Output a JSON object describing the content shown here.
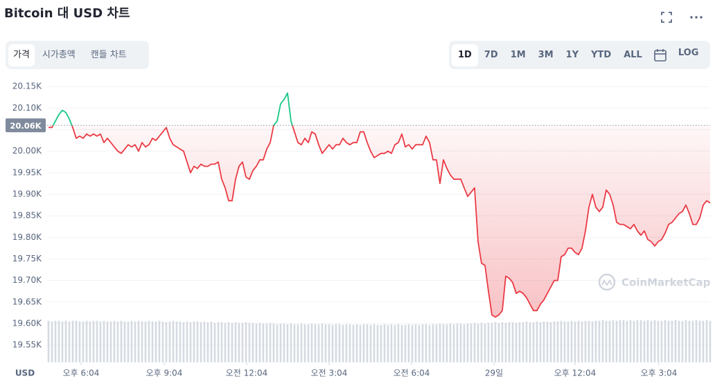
{
  "header": {
    "title": "Bitcoin 대 USD 차트"
  },
  "tabs": [
    "가격",
    "시가총액",
    "캔들 차트"
  ],
  "ranges": [
    "1D",
    "7D",
    "1M",
    "3M",
    "1Y",
    "YTD",
    "ALL"
  ],
  "log_button": "LOG",
  "chart_data": {
    "type": "line",
    "currency_label": "USD",
    "watermark": "CoinMarketCap",
    "up_color": "#16c784",
    "down_color": "#ea3943",
    "volume_color": "#d5dae2",
    "reference_line": {
      "value": 20060,
      "label": "20.06K"
    },
    "values": [
      20055,
      20055,
      20070,
      20085,
      20095,
      20090,
      20075,
      20055,
      20030,
      20035,
      20030,
      20040,
      20035,
      20040,
      20035,
      20040,
      20020,
      20030,
      20020,
      20010,
      20000,
      19995,
      20005,
      20015,
      20010,
      20015,
      20000,
      20020,
      20010,
      20015,
      20030,
      20025,
      20035,
      20045,
      20055,
      20030,
      20015,
      20010,
      20005,
      20000,
      19975,
      19950,
      19965,
      19960,
      19970,
      19965,
      19965,
      19970,
      19970,
      19975,
      19935,
      19915,
      19885,
      19885,
      19935,
      19965,
      19975,
      19940,
      19935,
      19955,
      19965,
      19980,
      19980,
      20005,
      20020,
      20060,
      20070,
      20110,
      20120,
      20135,
      20070,
      20045,
      20020,
      20015,
      20030,
      20020,
      20045,
      20040,
      20015,
      19995,
      20005,
      20015,
      20005,
      20015,
      20015,
      20030,
      20020,
      20015,
      20020,
      20020,
      20045,
      20045,
      20020,
      20000,
      19985,
      19990,
      19995,
      19995,
      20000,
      19995,
      20015,
      20020,
      20040,
      20010,
      20015,
      20005,
      20015,
      20015,
      20015,
      20035,
      20020,
      19980,
      19980,
      19925,
      19980,
      19960,
      19945,
      19935,
      19935,
      19935,
      19915,
      19895,
      19905,
      19915,
      19790,
      19740,
      19735,
      19675,
      19620,
      19615,
      19620,
      19630,
      19710,
      19705,
      19695,
      19670,
      19675,
      19670,
      19660,
      19645,
      19630,
      19630,
      19645,
      19655,
      19670,
      19685,
      19700,
      19700,
      19755,
      19760,
      19775,
      19775,
      19765,
      19760,
      19775,
      19815,
      19870,
      19900,
      19870,
      19860,
      19870,
      19910,
      19900,
      19875,
      19835,
      19830,
      19830,
      19825,
      19820,
      19830,
      19815,
      19805,
      19815,
      19795,
      19790,
      19780,
      19790,
      19795,
      19810,
      19830,
      19835,
      19845,
      19855,
      19860,
      19875,
      19855,
      19830,
      19830,
      19845,
      19875,
      19885,
      19880
    ],
    "volume": [
      61,
      60,
      61,
      61,
      60,
      61,
      60,
      61,
      61,
      60,
      60,
      61,
      60,
      61,
      61,
      60,
      61,
      60,
      60,
      61,
      60,
      61,
      60,
      60,
      61,
      60,
      61,
      60,
      60,
      61,
      60,
      60,
      61,
      60,
      59,
      60,
      61,
      60,
      60,
      59,
      60,
      59,
      60,
      60,
      59,
      60,
      59,
      60,
      58,
      59,
      59,
      58,
      59,
      58,
      59,
      58,
      58,
      59,
      58,
      58,
      57,
      58,
      57,
      57,
      58,
      57,
      56,
      57,
      57,
      56,
      57,
      56,
      56,
      57,
      56,
      56,
      57,
      56,
      56,
      57,
      56,
      56,
      55,
      56,
      56,
      55,
      56,
      56,
      55,
      56,
      55,
      56,
      56,
      55,
      56,
      55,
      55,
      56,
      55,
      56,
      55,
      56,
      55,
      55,
      56,
      55,
      56,
      55,
      56,
      56,
      55,
      56,
      56,
      57,
      56,
      56,
      57,
      56,
      57,
      57,
      56,
      57,
      57,
      58,
      57,
      58,
      57,
      58,
      58,
      59,
      58,
      59,
      58,
      59,
      59,
      58,
      59,
      59,
      60,
      59,
      59,
      60,
      59,
      60,
      60,
      59,
      60,
      60,
      61,
      60,
      60,
      61,
      60,
      61,
      60,
      61,
      61,
      60,
      61,
      61,
      62,
      61,
      61,
      62,
      61,
      62,
      62,
      61,
      62,
      61,
      62,
      62,
      61,
      62,
      61,
      62,
      61,
      61,
      62,
      61,
      61,
      62,
      61,
      61,
      62,
      61,
      61,
      62,
      61,
      61,
      62,
      61
    ],
    "xlim": [
      0,
      191
    ],
    "xticks": [
      {
        "value": 9.4,
        "label": "오후 6:04"
      },
      {
        "value": 33.4,
        "label": "오후 9:04"
      },
      {
        "value": 57.2,
        "label": "오전 12:04"
      },
      {
        "value": 81,
        "label": "오전 3:04"
      },
      {
        "value": 104.8,
        "label": "오전 6:04"
      },
      {
        "value": 128.6,
        "label": "29일"
      },
      {
        "value": 152,
        "label": "오후 12:04"
      },
      {
        "value": 176.2,
        "label": "오후 3:04"
      }
    ],
    "ylim": [
      19510,
      20160
    ],
    "yticks": [
      {
        "value": 19550,
        "label": "19.55K"
      },
      {
        "value": 19600,
        "label": "19.60K"
      },
      {
        "value": 19650,
        "label": "19.65K"
      },
      {
        "value": 19700,
        "label": "19.70K"
      },
      {
        "value": 19750,
        "label": "19.75K"
      },
      {
        "value": 19800,
        "label": "19.80K"
      },
      {
        "value": 19850,
        "label": "19.85K"
      },
      {
        "value": 19900,
        "label": "19.90K"
      },
      {
        "value": 19950,
        "label": "19.95K"
      },
      {
        "value": 20000,
        "label": "20.00K"
      },
      {
        "value": 20050,
        "label": "20.05K"
      },
      {
        "value": 20100,
        "label": "20.10K"
      },
      {
        "value": 20150,
        "label": "20.15K"
      }
    ],
    "grid": true
  }
}
